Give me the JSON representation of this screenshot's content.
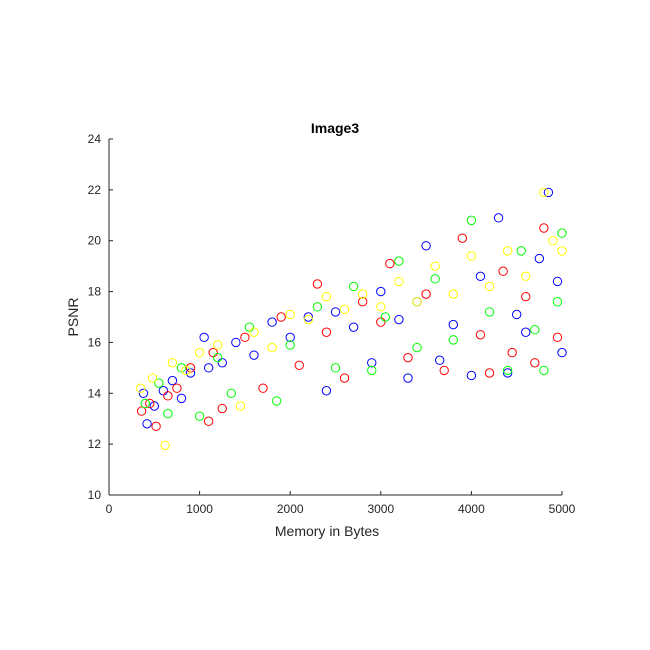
{
  "chart_data": {
    "type": "scatter",
    "title": "Image3",
    "xlabel": "Memory in Bytes",
    "ylabel": "PSNR",
    "xlim": [
      0,
      5000
    ],
    "ylim": [
      10,
      24
    ],
    "xticks": [
      0,
      1000,
      2000,
      3000,
      4000,
      5000
    ],
    "yticks": [
      10,
      12,
      14,
      16,
      18,
      20,
      22,
      24
    ],
    "xtick_labels": [
      "0",
      "1000",
      "2000",
      "3000",
      "4000",
      "5000"
    ],
    "ytick_labels": [
      "10",
      "12",
      "14",
      "16",
      "18",
      "20",
      "22",
      "24"
    ],
    "grid": false,
    "marker": "open-circle",
    "colors": [
      "#0000ff",
      "#ff0000",
      "#00ff00",
      "#ffff00"
    ],
    "series": [
      {
        "color": "#0000ff",
        "points": [
          [
            380,
            14.0
          ],
          [
            420,
            12.8
          ],
          [
            500,
            13.5
          ],
          [
            600,
            14.1
          ],
          [
            700,
            14.5
          ],
          [
            800,
            13.8
          ],
          [
            900,
            14.8
          ],
          [
            1050,
            16.2
          ],
          [
            1100,
            15.0
          ],
          [
            1250,
            15.2
          ],
          [
            1400,
            16.0
          ],
          [
            1600,
            15.5
          ],
          [
            1800,
            16.8
          ],
          [
            2000,
            16.2
          ],
          [
            2200,
            17.0
          ],
          [
            2400,
            14.1
          ],
          [
            2500,
            17.2
          ],
          [
            2700,
            16.6
          ],
          [
            2900,
            15.2
          ],
          [
            3000,
            18.0
          ],
          [
            3200,
            16.9
          ],
          [
            3300,
            14.6
          ],
          [
            3400,
            17.6
          ],
          [
            3500,
            19.8
          ],
          [
            3650,
            15.3
          ],
          [
            3800,
            16.7
          ],
          [
            4000,
            14.7
          ],
          [
            4100,
            18.6
          ],
          [
            4300,
            20.9
          ],
          [
            4400,
            14.8
          ],
          [
            4500,
            17.1
          ],
          [
            4600,
            16.4
          ],
          [
            4750,
            19.3
          ],
          [
            4850,
            21.9
          ],
          [
            4950,
            18.4
          ],
          [
            5000,
            15.6
          ]
        ]
      },
      {
        "color": "#ff0000",
        "points": [
          [
            360,
            13.3
          ],
          [
            450,
            13.6
          ],
          [
            520,
            12.7
          ],
          [
            650,
            13.9
          ],
          [
            750,
            14.2
          ],
          [
            900,
            15.0
          ],
          [
            1100,
            12.9
          ],
          [
            1150,
            15.6
          ],
          [
            1250,
            13.4
          ],
          [
            1500,
            16.2
          ],
          [
            1700,
            14.2
          ],
          [
            1900,
            17.0
          ],
          [
            2100,
            15.1
          ],
          [
            2300,
            18.3
          ],
          [
            2400,
            16.4
          ],
          [
            2600,
            14.6
          ],
          [
            2800,
            17.6
          ],
          [
            3000,
            16.8
          ],
          [
            3100,
            19.1
          ],
          [
            3300,
            15.4
          ],
          [
            3500,
            17.9
          ],
          [
            3700,
            14.9
          ],
          [
            3900,
            20.1
          ],
          [
            4100,
            16.3
          ],
          [
            4200,
            14.8
          ],
          [
            4350,
            18.8
          ],
          [
            4450,
            15.6
          ],
          [
            4600,
            17.8
          ],
          [
            4700,
            15.2
          ],
          [
            4800,
            20.5
          ],
          [
            4950,
            16.2
          ]
        ]
      },
      {
        "color": "#00ff00",
        "points": [
          [
            400,
            13.6
          ],
          [
            550,
            14.4
          ],
          [
            650,
            13.2
          ],
          [
            800,
            15.0
          ],
          [
            1000,
            13.1
          ],
          [
            1200,
            15.4
          ],
          [
            1350,
            14.0
          ],
          [
            1550,
            16.6
          ],
          [
            1850,
            13.7
          ],
          [
            2000,
            15.9
          ],
          [
            2300,
            17.4
          ],
          [
            2500,
            15.0
          ],
          [
            2700,
            18.2
          ],
          [
            2900,
            14.9
          ],
          [
            3050,
            17.0
          ],
          [
            3200,
            19.2
          ],
          [
            3400,
            15.8
          ],
          [
            3600,
            18.5
          ],
          [
            3800,
            16.1
          ],
          [
            4000,
            20.8
          ],
          [
            4200,
            17.2
          ],
          [
            4400,
            14.9
          ],
          [
            4550,
            19.6
          ],
          [
            4700,
            16.5
          ],
          [
            4800,
            14.9
          ],
          [
            4950,
            17.6
          ],
          [
            5000,
            20.3
          ]
        ]
      },
      {
        "color": "#ffff00",
        "points": [
          [
            350,
            14.2
          ],
          [
            480,
            14.6
          ],
          [
            620,
            11.95
          ],
          [
            700,
            15.2
          ],
          [
            850,
            14.9
          ],
          [
            1000,
            15.6
          ],
          [
            1200,
            15.9
          ],
          [
            1450,
            13.5
          ],
          [
            1600,
            16.4
          ],
          [
            1800,
            15.8
          ],
          [
            2000,
            17.1
          ],
          [
            2200,
            16.9
          ],
          [
            2400,
            17.8
          ],
          [
            2600,
            17.3
          ],
          [
            2800,
            17.9
          ],
          [
            3000,
            17.4
          ],
          [
            3200,
            18.4
          ],
          [
            3400,
            17.6
          ],
          [
            3600,
            19.0
          ],
          [
            3800,
            17.9
          ],
          [
            4000,
            19.4
          ],
          [
            4200,
            18.2
          ],
          [
            4400,
            19.6
          ],
          [
            4600,
            18.6
          ],
          [
            4800,
            21.9
          ],
          [
            4900,
            20.0
          ],
          [
            5000,
            19.6
          ]
        ]
      }
    ]
  }
}
